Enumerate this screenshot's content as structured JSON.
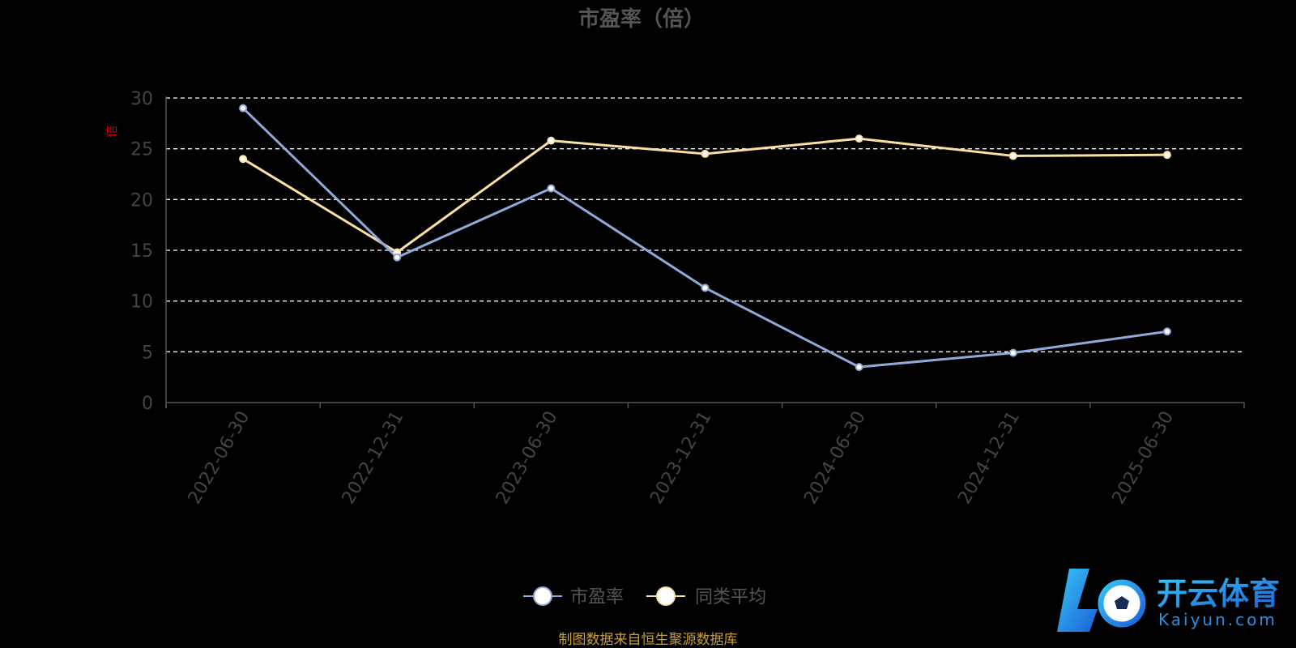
{
  "chart_data": {
    "type": "line",
    "title": "市盈率（倍）",
    "xlabel": "",
    "ylabel": "倍",
    "ylim": [
      0,
      30
    ],
    "yticks": [
      0,
      5,
      10,
      15,
      20,
      25,
      30
    ],
    "grid": true,
    "legend_position": "bottom",
    "categories": [
      "2022-06-30",
      "2022-12-31",
      "2023-06-30",
      "2023-12-31",
      "2024-06-30",
      "2024-12-31",
      "2025-06-30"
    ],
    "series": [
      {
        "name": "市盈率",
        "color": "#8fa9d8",
        "values": [
          29.0,
          14.3,
          21.1,
          11.3,
          3.5,
          4.9,
          7.0
        ]
      },
      {
        "name": "同类平均",
        "color": "#fce0a2",
        "values": [
          24.0,
          14.8,
          25.8,
          24.5,
          26.0,
          24.3,
          24.4
        ]
      }
    ]
  },
  "source_note": "制图数据来自恒生聚源数据库",
  "watermark": {
    "cn": "开云体育",
    "en": "Kaiyun.com"
  },
  "colors": {
    "background": "#000000",
    "grid": "#ffffff",
    "axis": "#555555"
  }
}
